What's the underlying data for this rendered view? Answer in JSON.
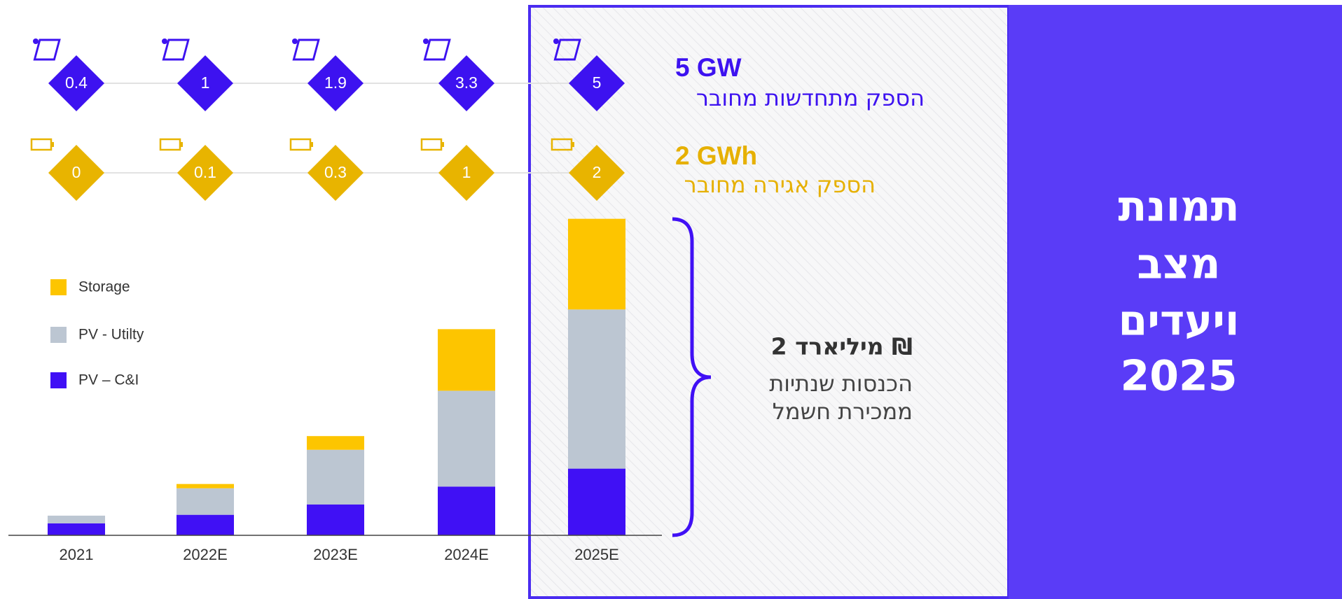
{
  "chart_data": {
    "type": "bar",
    "stacked": true,
    "categories": [
      "2021",
      "2022E",
      "2023E",
      "2024E",
      "2025E"
    ],
    "series": [
      {
        "name": "PV – C&I",
        "color": "#4010f5",
        "values": [
          1.4,
          2.4,
          3.6,
          5.7,
          7.8
        ]
      },
      {
        "name": "PV - Utilty",
        "color": "#bcc6d2",
        "values": [
          0.9,
          3.1,
          6.4,
          11.2,
          18.6
        ]
      },
      {
        "name": "Storage",
        "color": "#fdc500",
        "values": [
          0,
          0.5,
          1.6,
          7.2,
          10.6
        ]
      }
    ],
    "ylim": [
      0,
      40
    ]
  },
  "pv_row": {
    "color": "#3d12f0",
    "values": [
      0.4,
      1,
      1.9,
      3.3,
      5
    ],
    "headline": "5 GW",
    "caption": "הספק מתחדשות מחובר"
  },
  "storage_row": {
    "color": "#e8b400",
    "values": [
      0,
      0.1,
      0.3,
      1,
      2
    ],
    "headline": "2 GWh",
    "caption": "הספק אגירה מחובר"
  },
  "revenue": {
    "headline": "2 מיליארד ₪",
    "lines": [
      "הכנסות שנתיות",
      "ממכירת חשמל"
    ]
  },
  "panel_title": [
    "תמונת",
    "מצב",
    "ויעדים",
    "2025"
  ]
}
